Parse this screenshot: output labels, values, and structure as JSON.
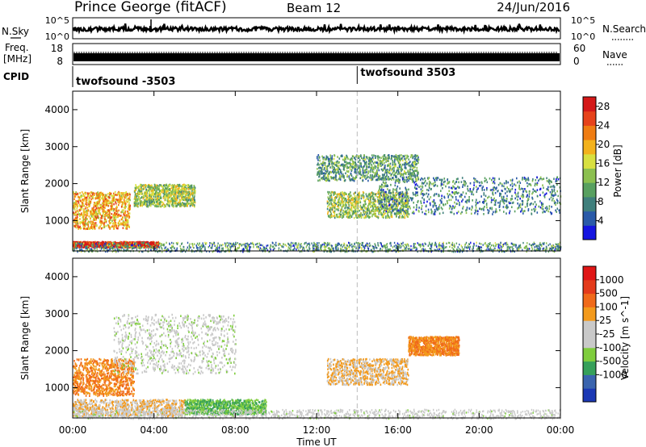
{
  "header": {
    "station": "Prince George (fitACF)",
    "beam": "Beam 12",
    "date": "24/Jun/2016"
  },
  "noise_panel": {
    "left_label": "N.Sky",
    "left_ticks": [
      "10^5",
      "10^0"
    ],
    "right_ticks": [
      "10^5",
      "10^0"
    ],
    "right_label": "N.Search"
  },
  "freq_panel": {
    "left_label_1": "Freq.",
    "left_label_2": "[MHz]",
    "left_ticks": [
      "18",
      "8"
    ],
    "right_ticks": [
      "60",
      "0"
    ],
    "right_label": "Nave"
  },
  "cpid_panel": {
    "label": "CPID",
    "segments": [
      {
        "name": "twofsound -3503",
        "start_hour": 0,
        "end_hour": 14
      },
      {
        "name": "twofsound 3503",
        "start_hour": 14,
        "end_hour": 24
      }
    ]
  },
  "chart_data": [
    {
      "type": "heatmap",
      "title": "Power [dB]",
      "ylabel": "Slant Range [km]",
      "xlabel": "Time UT",
      "xlim": [
        0,
        24
      ],
      "ylim": [
        180,
        4500
      ],
      "yticks": [
        1000,
        2000,
        3000,
        4000
      ],
      "colorbar": {
        "label": "Power [dB]",
        "ticks": [
          4,
          8,
          12,
          16,
          20,
          24,
          28
        ],
        "range": [
          0,
          30
        ],
        "colors": [
          "#1515e0",
          "#2a5aa8",
          "#3f7f7c",
          "#58a060",
          "#8cc050",
          "#d8e040",
          "#f3b21c",
          "#ef7c12",
          "#e6421a",
          "#d41818"
        ]
      },
      "features": [
        {
          "hours": [
            0,
            4.2
          ],
          "range_km": [
            300,
            450
          ],
          "dB": 28
        },
        {
          "hours": [
            0,
            2.8
          ],
          "range_km": [
            800,
            1800
          ],
          "dB": 20
        },
        {
          "hours": [
            3.0,
            6.0
          ],
          "range_km": [
            1400,
            2000
          ],
          "dB": 14
        },
        {
          "hours": [
            12.5,
            16.5
          ],
          "range_km": [
            1100,
            1800
          ],
          "dB": 14
        },
        {
          "hours": [
            12.0,
            17.0
          ],
          "range_km": [
            2100,
            2800
          ],
          "dB": 10
        },
        {
          "hours": [
            15.0,
            24.0
          ],
          "range_km": [
            1200,
            2200
          ],
          "dB": 8
        }
      ]
    },
    {
      "type": "heatmap",
      "title": "Velocity [m s^-1]",
      "ylabel": "Slant Range [km]",
      "xlabel": "Time UT",
      "xlim": [
        0,
        24
      ],
      "ylim": [
        180,
        4500
      ],
      "yticks": [
        1000,
        2000,
        3000,
        4000
      ],
      "xticks": [
        "00:00",
        "04:00",
        "08:00",
        "12:00",
        "16:00",
        "20:00",
        "00:00"
      ],
      "colorbar": {
        "label": "Velocity [m s^-1]",
        "ticks": [
          1000,
          500,
          100,
          25,
          -25,
          -100,
          -500,
          -1000
        ],
        "colors": [
          "#1b38b4",
          "#3a64ae",
          "#36a05a",
          "#7fcd3d",
          "#c9c9c9",
          "#c9c9c9",
          "#f39a1c",
          "#f06a1a",
          "#e43b1b",
          "#e01616"
        ]
      },
      "features": [
        {
          "hours": [
            0,
            3.0
          ],
          "range_km": [
            800,
            1800
          ],
          "velocity": -500
        },
        {
          "hours": [
            0,
            5.5
          ],
          "range_km": [
            250,
            700
          ],
          "velocity": -100
        },
        {
          "hours": [
            5.5,
            9.5
          ],
          "range_km": [
            300,
            700
          ],
          "velocity": 100
        },
        {
          "hours": [
            12.5,
            16.5
          ],
          "range_km": [
            1100,
            1800
          ],
          "velocity": -100
        },
        {
          "hours": [
            16.5,
            19.0
          ],
          "range_km": [
            1900,
            2400
          ],
          "velocity": -500
        },
        {
          "hours": [
            2.0,
            8.0
          ],
          "range_km": [
            1400,
            3000
          ],
          "velocity": 0
        }
      ]
    }
  ],
  "x_axis": {
    "ticks": [
      "00:00",
      "04:00",
      "08:00",
      "12:00",
      "16:00",
      "20:00",
      "00:00"
    ],
    "label": "Time UT"
  }
}
